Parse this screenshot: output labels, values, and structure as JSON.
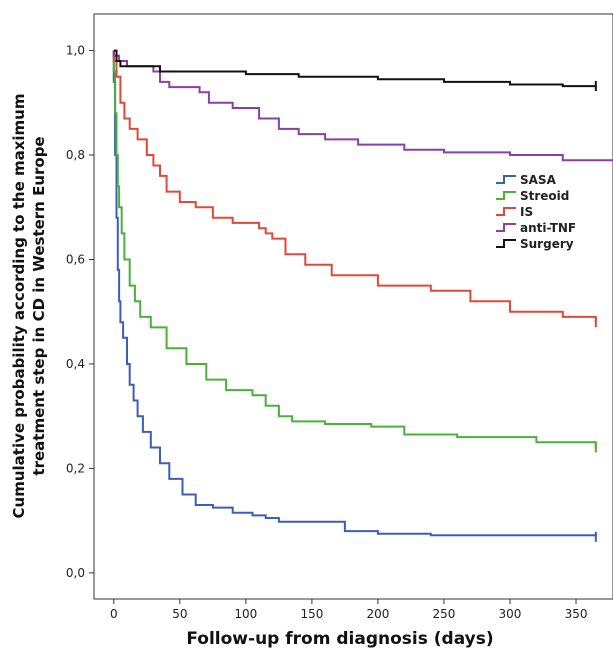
{
  "chart_data": {
    "type": "line",
    "xlabel": "Follow-up from diagnosis (days)",
    "ylabel_lines": [
      "Cumulative probability according to the maximum",
      "treatment step in CD in Western Europe"
    ],
    "xlim": [
      -15,
      378
    ],
    "ylim": [
      -0.05,
      1.07
    ],
    "x_ticks": [
      0,
      50,
      100,
      150,
      200,
      250,
      300,
      350
    ],
    "x_tick_labels": [
      "0",
      "50",
      "100",
      "150",
      "200",
      "250",
      "300",
      "350"
    ],
    "y_ticks": [
      0.0,
      0.2,
      0.4,
      0.6,
      0.8,
      1.0
    ],
    "y_tick_labels": [
      "0,0",
      "0,2",
      "0,4",
      "0,6",
      "0,8",
      "1,0"
    ],
    "grid": false,
    "legend_position": "right",
    "series": [
      {
        "name": "SASA",
        "color": "#3a5fb8",
        "points": [
          [
            0,
            1.0
          ],
          [
            0,
            0.94
          ],
          [
            1,
            0.8
          ],
          [
            2,
            0.68
          ],
          [
            3,
            0.58
          ],
          [
            4,
            0.52
          ],
          [
            5,
            0.48
          ],
          [
            7,
            0.45
          ],
          [
            10,
            0.4
          ],
          [
            12,
            0.36
          ],
          [
            15,
            0.33
          ],
          [
            18,
            0.3
          ],
          [
            22,
            0.27
          ],
          [
            28,
            0.24
          ],
          [
            35,
            0.21
          ],
          [
            42,
            0.18
          ],
          [
            52,
            0.15
          ],
          [
            62,
            0.13
          ],
          [
            75,
            0.125
          ],
          [
            90,
            0.115
          ],
          [
            105,
            0.11
          ],
          [
            115,
            0.105
          ],
          [
            125,
            0.098
          ],
          [
            160,
            0.098
          ],
          [
            175,
            0.08
          ],
          [
            200,
            0.075
          ],
          [
            240,
            0.072
          ],
          [
            365,
            0.069
          ]
        ]
      },
      {
        "name": "Streoid",
        "color": "#4caf3a",
        "points": [
          [
            0,
            1.0
          ],
          [
            0,
            0.96
          ],
          [
            1,
            0.88
          ],
          [
            2,
            0.8
          ],
          [
            3,
            0.74
          ],
          [
            4,
            0.7
          ],
          [
            6,
            0.65
          ],
          [
            8,
            0.6
          ],
          [
            12,
            0.55
          ],
          [
            16,
            0.52
          ],
          [
            20,
            0.49
          ],
          [
            28,
            0.47
          ],
          [
            40,
            0.43
          ],
          [
            55,
            0.4
          ],
          [
            70,
            0.37
          ],
          [
            85,
            0.35
          ],
          [
            105,
            0.34
          ],
          [
            115,
            0.32
          ],
          [
            125,
            0.3
          ],
          [
            135,
            0.29
          ],
          [
            160,
            0.285
          ],
          [
            195,
            0.28
          ],
          [
            220,
            0.265
          ],
          [
            260,
            0.26
          ],
          [
            320,
            0.25
          ],
          [
            365,
            0.24
          ]
        ]
      },
      {
        "name": "IS",
        "color": "#e0483a",
        "points": [
          [
            0,
            1.0
          ],
          [
            0,
            0.98
          ],
          [
            2,
            0.95
          ],
          [
            5,
            0.9
          ],
          [
            8,
            0.87
          ],
          [
            12,
            0.85
          ],
          [
            18,
            0.83
          ],
          [
            25,
            0.8
          ],
          [
            30,
            0.78
          ],
          [
            35,
            0.76
          ],
          [
            40,
            0.73
          ],
          [
            50,
            0.71
          ],
          [
            62,
            0.7
          ],
          [
            75,
            0.68
          ],
          [
            90,
            0.67
          ],
          [
            110,
            0.66
          ],
          [
            115,
            0.65
          ],
          [
            120,
            0.64
          ],
          [
            130,
            0.61
          ],
          [
            145,
            0.59
          ],
          [
            165,
            0.57
          ],
          [
            200,
            0.55
          ],
          [
            240,
            0.54
          ],
          [
            270,
            0.52
          ],
          [
            300,
            0.5
          ],
          [
            340,
            0.49
          ],
          [
            365,
            0.48
          ]
        ]
      },
      {
        "name": "anti-TNF",
        "color": "#8a3fa8",
        "points": [
          [
            0,
            1.0
          ],
          [
            0,
            0.99
          ],
          [
            4,
            0.98
          ],
          [
            10,
            0.97
          ],
          [
            30,
            0.96
          ],
          [
            35,
            0.94
          ],
          [
            42,
            0.93
          ],
          [
            65,
            0.92
          ],
          [
            72,
            0.9
          ],
          [
            90,
            0.89
          ],
          [
            110,
            0.87
          ],
          [
            125,
            0.85
          ],
          [
            140,
            0.84
          ],
          [
            160,
            0.83
          ],
          [
            185,
            0.82
          ],
          [
            220,
            0.81
          ],
          [
            250,
            0.805
          ],
          [
            300,
            0.8
          ],
          [
            340,
            0.79
          ],
          [
            378,
            0.79
          ]
        ]
      },
      {
        "name": "Surgery",
        "color": "#111111",
        "points": [
          [
            0,
            1.0
          ],
          [
            2,
            0.98
          ],
          [
            5,
            0.97
          ],
          [
            20,
            0.97
          ],
          [
            35,
            0.96
          ],
          [
            100,
            0.955
          ],
          [
            140,
            0.95
          ],
          [
            200,
            0.945
          ],
          [
            250,
            0.94
          ],
          [
            300,
            0.935
          ],
          [
            340,
            0.932
          ],
          [
            365,
            0.932
          ]
        ]
      }
    ]
  }
}
